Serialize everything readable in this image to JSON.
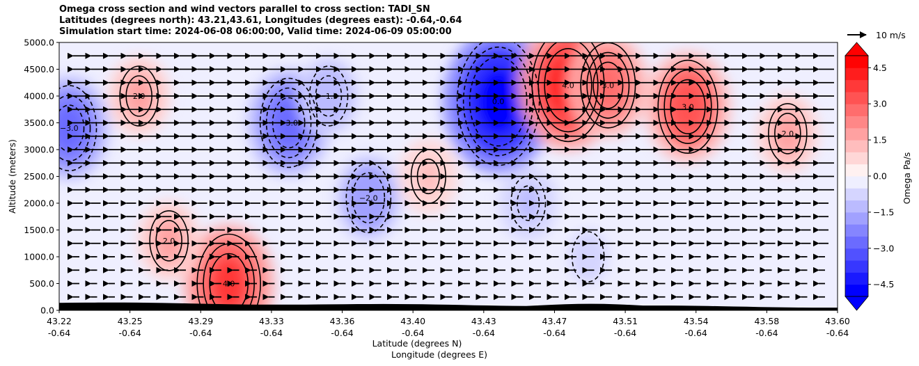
{
  "title_lines": [
    "Omega cross section and wind vectors parallel to cross section: TADI_SN",
    "Latitudes (degrees north): 43.21,43.61, Longitudes (degrees east): -0.64,-0.64",
    "Simulation start time: 2024-06-08 06:00:00, Valid time: 2024-06-09 05:00:00"
  ],
  "chart_data": {
    "type": "heatmap",
    "title": "Omega cross section and wind vectors parallel to cross section: TADI_SN",
    "ylabel": "Altitude (meters)",
    "xlabel_lines": [
      "Latitude (degrees N)",
      "Longitude (degrees E)"
    ],
    "ylim": [
      0,
      5000
    ],
    "yticks": [
      "0.0",
      "500.0",
      "1000.0",
      "1500.0",
      "2000.0",
      "2500.0",
      "3000.0",
      "3500.0",
      "4000.0",
      "4500.0",
      "5000.0"
    ],
    "xticks": [
      {
        "lat": "43.22",
        "lon": "-0.64"
      },
      {
        "lat": "43.25",
        "lon": "-0.64"
      },
      {
        "lat": "43.29",
        "lon": "-0.64"
      },
      {
        "lat": "43.33",
        "lon": "-0.64"
      },
      {
        "lat": "43.36",
        "lon": "-0.64"
      },
      {
        "lat": "43.40",
        "lon": "-0.64"
      },
      {
        "lat": "43.43",
        "lon": "-0.64"
      },
      {
        "lat": "43.47",
        "lon": "-0.64"
      },
      {
        "lat": "43.51",
        "lon": "-0.64"
      },
      {
        "lat": "43.54",
        "lon": "-0.64"
      },
      {
        "lat": "43.58",
        "lon": "-0.64"
      },
      {
        "lat": "43.60",
        "lon": "-0.64"
      }
    ],
    "colorbar": {
      "label": "Omega Pa/s",
      "ticks": [
        "−4.5",
        "−3.0",
        "−1.5",
        "0.0",
        "1.5",
        "3.0",
        "4.5"
      ],
      "range": [
        -5,
        5
      ],
      "colors": [
        "#0000ff",
        "#1a1aff",
        "#3737ff",
        "#5151ff",
        "#6b6bff",
        "#8585ff",
        "#a1a1ff",
        "#bbbbff",
        "#d5d5ff",
        "#efefff",
        "#fff1f1",
        "#ffd7d7",
        "#ffbdbd",
        "#ffa1a1",
        "#ff8787",
        "#ff6d6d",
        "#ff5353",
        "#ff3939",
        "#ff1d1d",
        "#ff0303"
      ]
    },
    "wind_reference": "10 m/s",
    "contour_labels": [
      "0.0",
      "1.0",
      "−1.0",
      "2.0",
      "−2.0",
      "3.0",
      "−3.0",
      "4.0"
    ],
    "omega_features": [
      {
        "lat": 43.435,
        "alt_m": 3900,
        "omega": -5.0
      },
      {
        "lat": 43.47,
        "alt_m": 4200,
        "omega": 4.2
      },
      {
        "lat": 43.3,
        "alt_m": 500,
        "omega": 3.5
      },
      {
        "lat": 43.53,
        "alt_m": 3800,
        "omega": 3.2
      },
      {
        "lat": 43.33,
        "alt_m": 3500,
        "omega": -3.0
      },
      {
        "lat": 43.22,
        "alt_m": 3400,
        "omega": -2.8
      },
      {
        "lat": 43.37,
        "alt_m": 2100,
        "omega": -2.0
      },
      {
        "lat": 43.49,
        "alt_m": 4200,
        "omega": 2.8
      },
      {
        "lat": 43.255,
        "alt_m": 4000,
        "omega": 1.5
      },
      {
        "lat": 43.27,
        "alt_m": 1300,
        "omega": 1.5
      },
      {
        "lat": 43.35,
        "alt_m": 4000,
        "omega": -1.5
      },
      {
        "lat": 43.58,
        "alt_m": 3300,
        "omega": 1.5
      },
      {
        "lat": 43.4,
        "alt_m": 2500,
        "omega": 1.2
      },
      {
        "lat": 43.45,
        "alt_m": 2000,
        "omega": -1.2
      },
      {
        "lat": 43.48,
        "alt_m": 1000,
        "omega": -1.0
      }
    ],
    "wind_direction": "toward south (leftward)"
  },
  "colors": {
    "terrain": "#000000",
    "arrow": "#000000"
  }
}
